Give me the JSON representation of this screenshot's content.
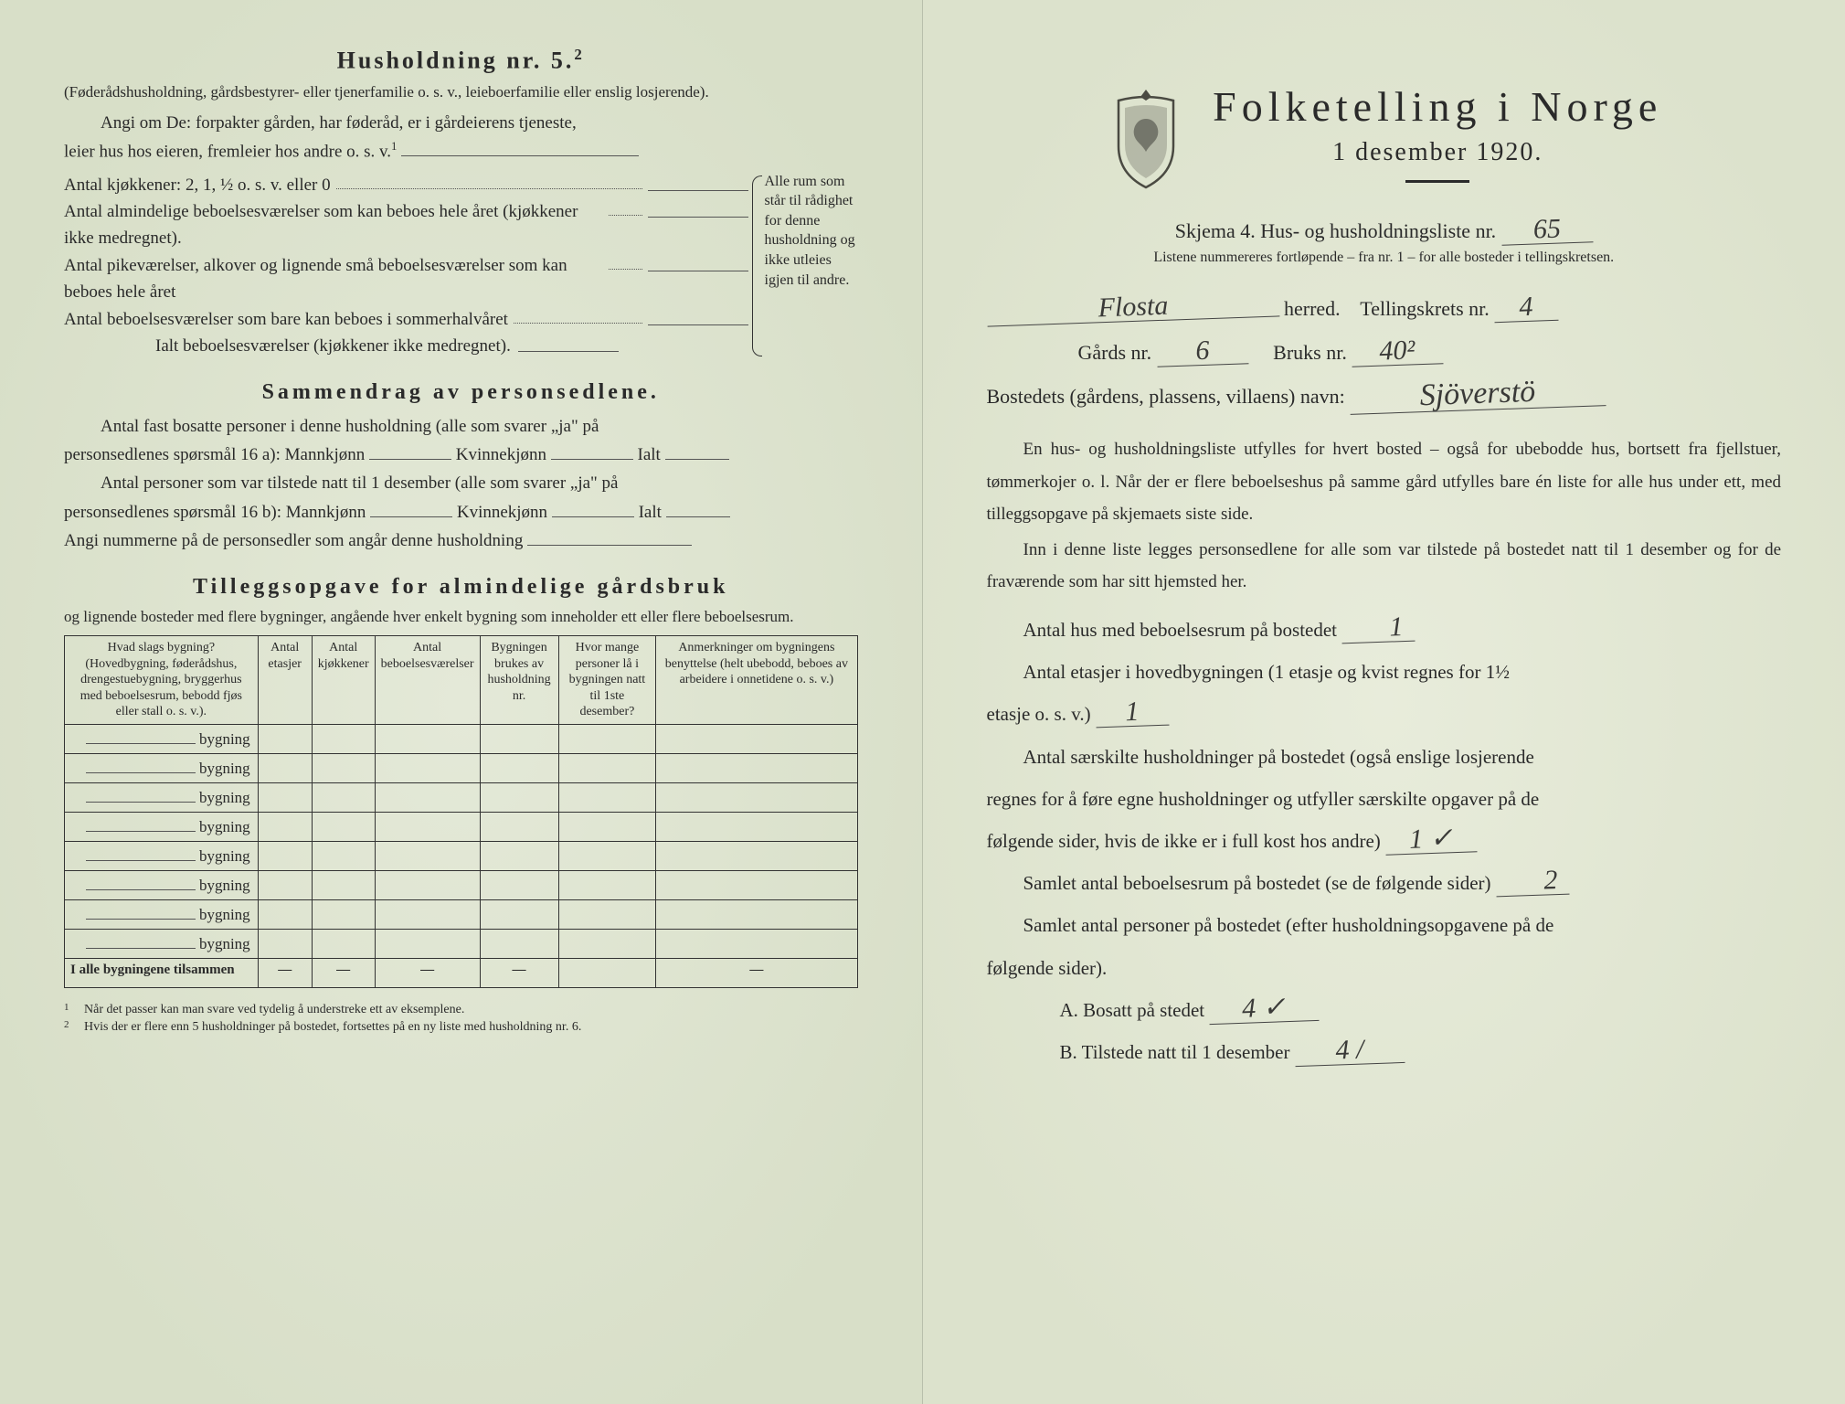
{
  "left": {
    "household_title": "Husholdning nr. 5.",
    "household_sup": "2",
    "hh_subtitle": "(Føderådshusholdning, gårdsbestyrer- eller tjenerfamilie o. s. v., leieboerfamilie eller enslig losjerende).",
    "angi_line1": "Angi om De:  forpakter gården, har føderåd, er i gårdeierens tjeneste,",
    "angi_line2_a": "leier hus hos eieren, fremleier hos andre o. s. v.",
    "angi_sup": "1",
    "kitchens_label": "Antal kjøkkener: 2, 1, ½ o. s. v. eller 0",
    "rooms_lines": [
      "Antal almindelige beboelsesværelser som kan beboes hele året (kjøkkener ikke medregnet).",
      "Antal pikeværelser, alkover og lignende små beboelsesværelser som kan beboes hele året",
      "Antal beboelsesværelser som bare kan beboes i sommerhalvåret",
      "Ialt beboelsesværelser  (kjøkkener ikke medregnet)."
    ],
    "brace_text": "Alle rum som står til rådighet for denne husholdning og ikke utleies igjen til andre.",
    "summary_title": "Sammendrag av personsedlene.",
    "sum_line1_a": "Antal fast bosatte personer i denne husholdning (alle som svarer „ja\" på",
    "sum_line1_b": "personsedlenes spørsmål 16 a): Mannkjønn",
    "sum_kv": "Kvinnekjønn",
    "sum_ialt": "Ialt",
    "sum_line2_a": "Antal personer som var tilstede natt til 1 desember (alle som svarer „ja\" på",
    "sum_line2_b": "personsedlenes spørsmål 16 b): Mannkjønn",
    "sum_line3": "Angi nummerne på de personsedler som angår denne husholdning",
    "tillegg_title": "Tilleggsopgave for almindelige gårdsbruk",
    "tillegg_sub": "og lignende bosteder med flere bygninger, angående hver enkelt bygning som inneholder ett eller flere beboelsesrum.",
    "table": {
      "columns": [
        "Hvad slags bygning?\n(Hovedbygning, føderådshus, drengestuebygning, bryggerhus med beboelsesrum, bebodd fjøs eller stall o. s. v.).",
        "Antal etasjer",
        "Antal kjøkkener",
        "Antal beboelsesværelser",
        "Bygningen brukes av husholdning nr.",
        "Hvor mange personer lå i bygningen natt til 1ste desember?",
        "Anmerkninger om bygningens benyttelse (helt ubebodd, beboes av arbeidere i onnetidene o. s. v.)"
      ],
      "row_label": "bygning",
      "row_count": 8,
      "sum_label": "I alle bygningene tilsammen",
      "dash": "—"
    },
    "footnotes": [
      "Når det passer kan man svare ved tydelig å understreke ett av eksemplene.",
      "Hvis der er flere enn 5 husholdninger på bostedet, fortsettes på en ny liste med husholdning nr. 6."
    ]
  },
  "right": {
    "title": "Folketelling i Norge",
    "date": "1 desember 1920.",
    "skjema_a": "Skjema 4.  Hus- og husholdningsliste nr.",
    "skjema_nr": "65",
    "sub_note": "Listene nummereres fortløpende – fra nr. 1 – for alle bosteder i tellingskretsen.",
    "herred_value": "Flosta",
    "herred_label": "herred.",
    "krets_label": "Tellingskrets nr.",
    "krets_value": "4",
    "gards_label": "Gårds nr.",
    "gards_value": "6",
    "bruks_label": "Bruks nr.",
    "bruks_value": "40²",
    "bosted_label": "Bostedets (gårdens, plassens, villaens) navn:",
    "bosted_value": "Sjöverstö",
    "para1": "En hus- og husholdningsliste utfylles for hvert bosted – også for ubebodde hus, bortsett fra fjellstuer, tømmerkojer o. l.  Når der er flere beboelseshus på samme gård utfylles bare én liste for alle hus under ett, med tilleggsopgave på skjemaets siste side.",
    "para2": "Inn i denne liste legges personsedlene for alle som var tilstede på bostedet natt til 1 desember og for de fraværende som har sitt hjemsted her.",
    "q1_label": "Antal hus med beboelsesrum på bostedet",
    "q1_value": "1",
    "q2_label_a": "Antal etasjer i hovedbygningen (1 etasje og kvist regnes for 1½",
    "q2_label_b": "etasje o. s. v.)",
    "q2_value": "1",
    "q3_a": "Antal særskilte husholdninger på bostedet (også enslige losjerende",
    "q3_b": "regnes for å føre egne husholdninger og utfyller særskilte opgaver på de",
    "q3_c": "følgende sider, hvis de ikke er i full kost hos andre)",
    "q3_value": "1 ✓",
    "q4_label": "Samlet antal beboelsesrum på bostedet (se de følgende sider)",
    "q4_value": "2",
    "q5_a": "Samlet antal personer på bostedet (efter husholdningsopgavene på de",
    "q5_b": "følgende sider).",
    "qA_label": "A.  Bosatt på stedet",
    "qA_value": "4 ✓",
    "qB_label": "B.  Tilstede natt til 1 desember",
    "qB_value": "4 /"
  },
  "colors": {
    "paper": "#e0e6d2",
    "ink": "#2a2a2a",
    "rule": "#444444"
  }
}
